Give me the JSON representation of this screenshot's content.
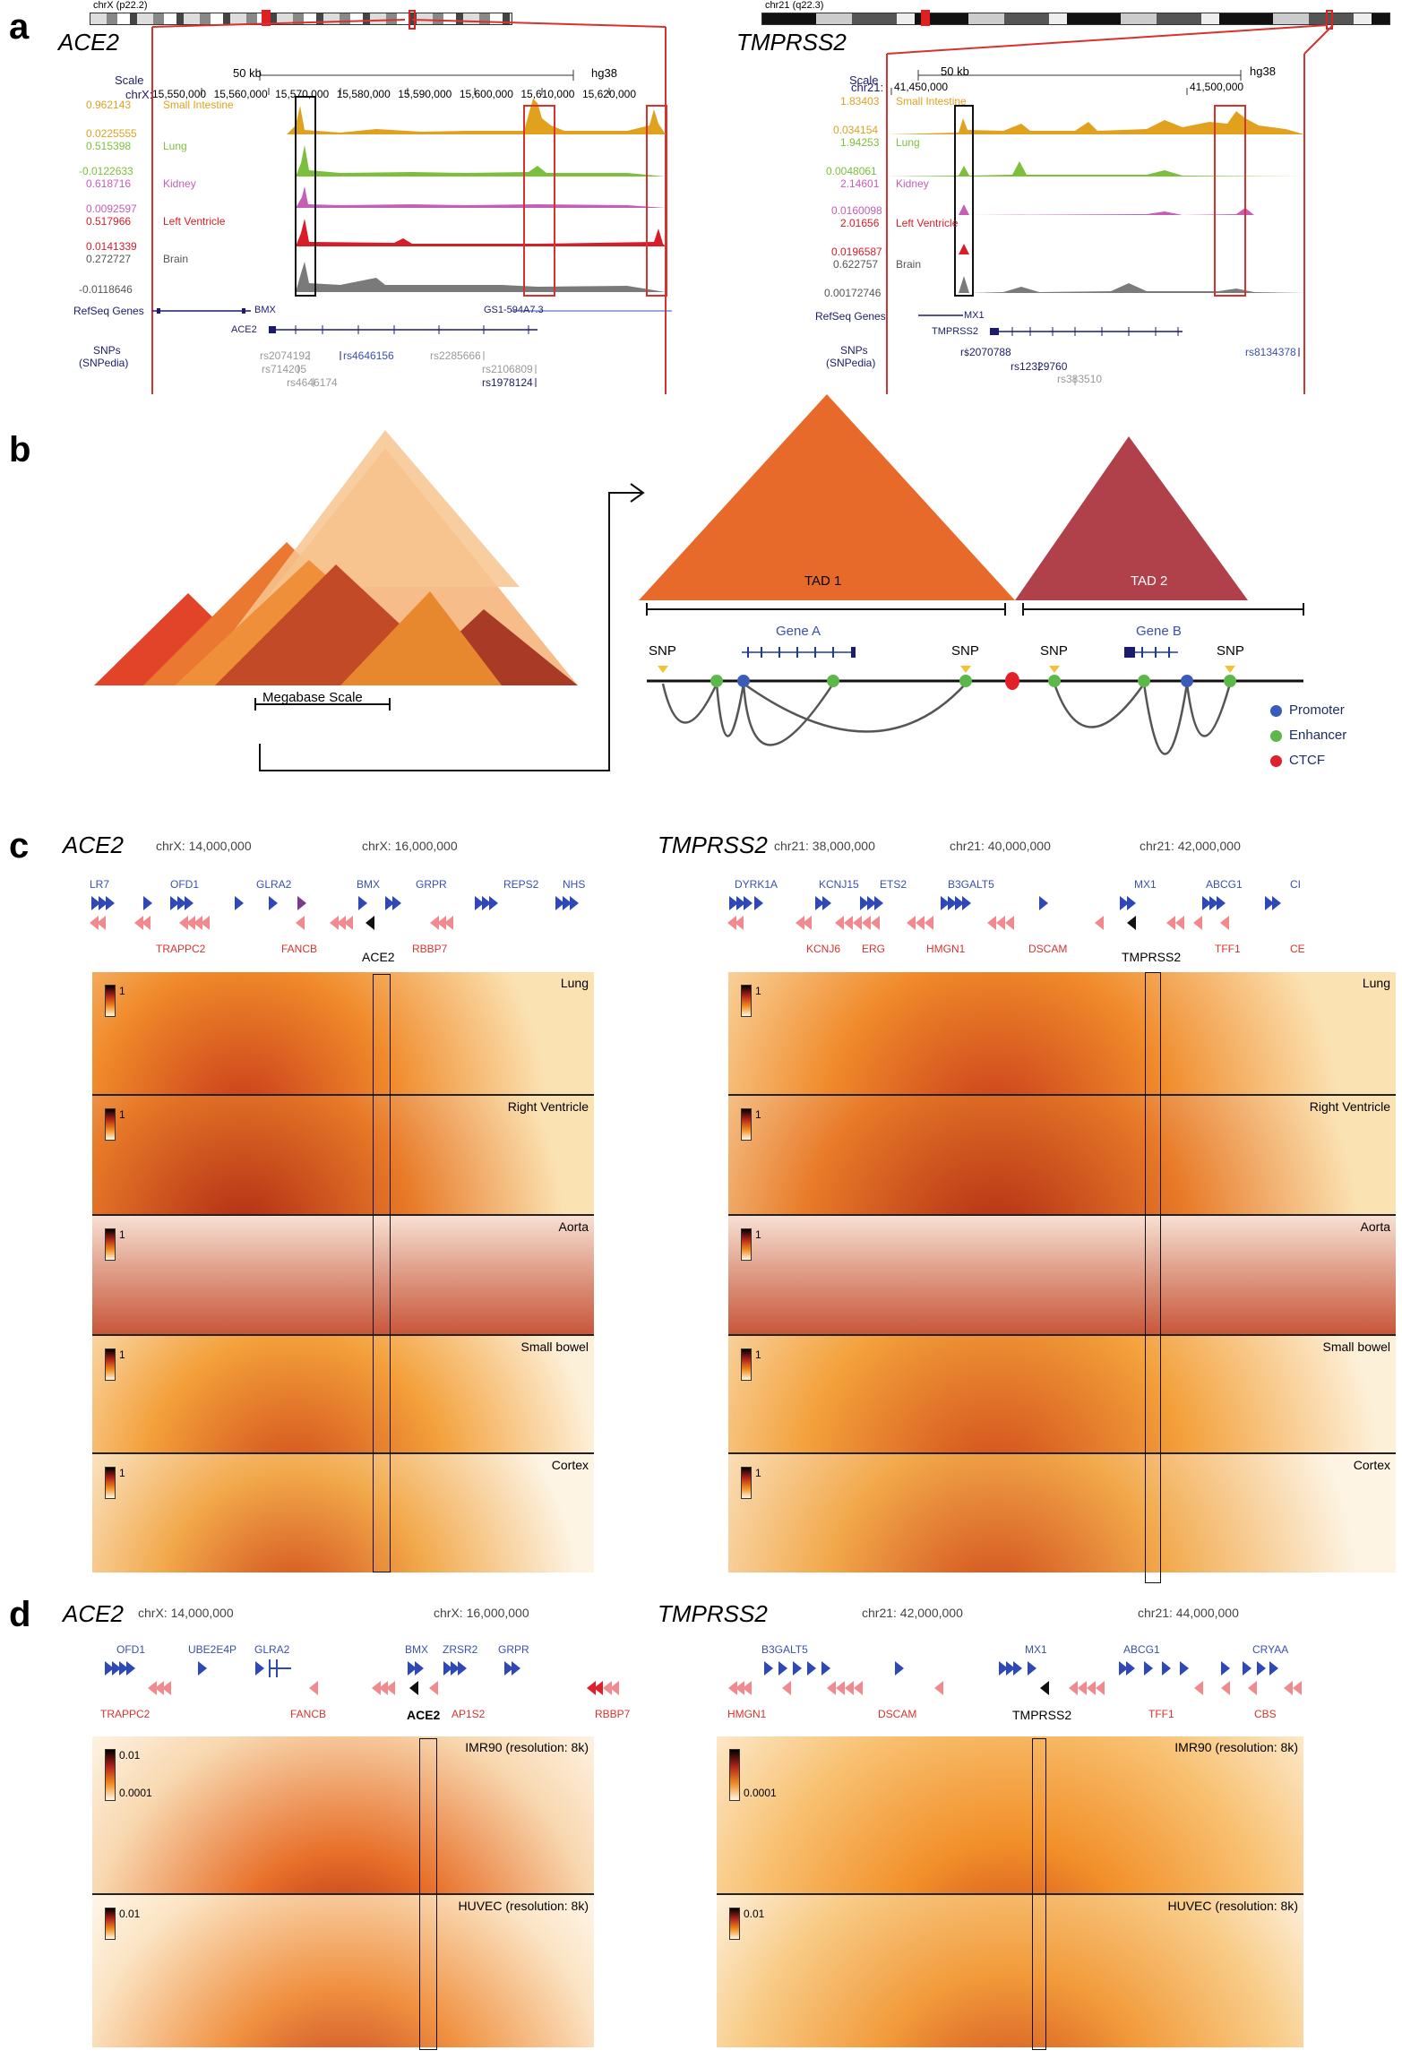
{
  "panels": {
    "a": {
      "label": "a",
      "ace2": {
        "title": "ACE2",
        "ideogram": "chrX (p22.2)",
        "scale_label": "Scale",
        "scale_value": "50 kb",
        "genome": "hg38",
        "chr_prefix": "chrX:",
        "coords": [
          "15,550,000",
          "15,560,000",
          "15,570,000",
          "15,580,000",
          "15,590,000",
          "15,600,000",
          "15,610,000",
          "15,620,000"
        ],
        "tracks": [
          {
            "name": "Small Intestine",
            "vmax": "0.962143",
            "vmin": "0.0225555",
            "color": "#e0a21e"
          },
          {
            "name": "Lung",
            "vmax": "0.515398",
            "vmin": "-0.0122633",
            "color": "#7cbf3c"
          },
          {
            "name": "Kidney",
            "vmax": "0.618716",
            "vmin": "0.0092597",
            "color": "#c65db6"
          },
          {
            "name": "Left Ventricle",
            "vmax": "0.517966",
            "vmin": "0.0141339",
            "color": "#d81c28"
          },
          {
            "name": "Brain",
            "vmax": "0.272727",
            "vmin": "-0.0118646",
            "color": "#7a7a7a"
          }
        ],
        "refseq_label": "RefSeq Genes",
        "genes": [
          "BMX",
          "GS1-594A7.3",
          "ACE2"
        ],
        "snps_label": "SNPs",
        "snps_sub": "(SNPedia)",
        "snps": [
          "rs2074192",
          "rs4646156",
          "rs2285666",
          "rs714205",
          "rs2106809",
          "rs4646174",
          "rs1978124"
        ]
      },
      "tmprss2": {
        "title": "TMPRSS2",
        "ideogram": "chr21 (q22.3)",
        "scale_label": "Scale",
        "scale_value": "50 kb",
        "genome": "hg38",
        "chr_prefix": "chr21:",
        "coords": [
          "41,450,000",
          "41,500,000"
        ],
        "tracks": [
          {
            "name": "Small Intestine",
            "vmax": "1.83403",
            "vmin": "0.034154",
            "color": "#e0a21e"
          },
          {
            "name": "Lung",
            "vmax": "1.94253",
            "vmin": "0.0048061",
            "color": "#7cbf3c"
          },
          {
            "name": "Kidney",
            "vmax": "2.14601",
            "vmin": "0.0160098",
            "color": "#c65db6"
          },
          {
            "name": "Left Ventricle",
            "vmax": "2.01656",
            "vmin": "0.0196587",
            "color": "#d81c28"
          },
          {
            "name": "Brain",
            "vmax": "0.622757",
            "vmin": "0.00172746",
            "color": "#7a7a7a"
          }
        ],
        "refseq_label": "RefSeq Genes",
        "genes": [
          "MX1",
          "TMPRSS2"
        ],
        "snps_label": "SNPs",
        "snps_sub": "(SNPedia)",
        "snps": [
          "rs2070788",
          "rs12329760",
          "rs8134378",
          "rs383510"
        ]
      }
    },
    "b": {
      "label": "b",
      "megabase_label": "Megabase Scale",
      "tad1": "TAD 1",
      "tad2": "TAD 2",
      "gene_a": "Gene A",
      "gene_b": "Gene B",
      "snp": "SNP",
      "legend": [
        {
          "label": "Promoter",
          "color": "#3a5bb8"
        },
        {
          "label": "Enhancer",
          "color": "#5cb84a"
        },
        {
          "label": "CTCF",
          "color": "#e0202a"
        }
      ]
    },
    "c": {
      "label": "c",
      "ace2": {
        "title": "ACE2",
        "coords": [
          "chrX: 14,000,000",
          "chrX: 16,000,000"
        ],
        "genes_top": [
          "LR7",
          "OFD1",
          "GLRA2",
          "BMX",
          "GRPR",
          "REPS2",
          "NHS"
        ],
        "genes_bottom": [
          "TRAPPC2",
          "FANCB",
          "RBBP7"
        ],
        "highlight": "ACE2",
        "maps": [
          "Lung",
          "Right Ventricle",
          "Aorta",
          "Small bowel",
          "Cortex"
        ],
        "cbar": "1"
      },
      "tmprss2": {
        "title": "TMPRSS2",
        "coords": [
          "chr21: 38,000,000",
          "chr21: 40,000,000",
          "chr21: 42,000,000"
        ],
        "genes_top": [
          "DYRK1A",
          "KCNJ15",
          "ETS2",
          "B3GALT5",
          "MX1",
          "ABCG1",
          "CI"
        ],
        "genes_bottom": [
          "KCNJ6",
          "ERG",
          "HMGN1",
          "DSCAM",
          "TFF1",
          "CE"
        ],
        "highlight": "TMPRSS2",
        "maps": [
          "Lung",
          "Right Ventricle",
          "Aorta",
          "Small bowel",
          "Cortex"
        ],
        "cbar": "1"
      }
    },
    "d": {
      "label": "d",
      "ace2": {
        "title": "ACE2",
        "coords": [
          "chrX: 14,000,000",
          "chrX: 16,000,000"
        ],
        "genes_top": [
          "OFD1",
          "UBE2E4P",
          "GLRA2",
          "BMX",
          "ZRSR2",
          "GRPR"
        ],
        "genes_bottom": [
          "TRAPPC2",
          "FANCB",
          "AP1S2",
          "RBBP7"
        ],
        "highlight": "ACE2",
        "maps": [
          "IMR90 (resolution: 8k)",
          "HUVEC (resolution: 8k)"
        ],
        "cbar_top": "0.01",
        "cbar_bottom": "0.0001",
        "cbar2": "0.01"
      },
      "tmprss2": {
        "title": "TMPRSS2",
        "coords": [
          "chr21: 42,000,000",
          "chr21: 44,000,000"
        ],
        "genes_top": [
          "B3GALT5",
          "MX1",
          "ABCG1",
          "CRYAA"
        ],
        "genes_bottom": [
          "HMGN1",
          "DSCAM",
          "TFF1",
          "CBS"
        ],
        "highlight": "TMPRSS2",
        "maps": [
          "IMR90 (resolution: 8k)",
          "HUVEC (resolution: 8k)"
        ],
        "cbar_bottom": "0.0001",
        "cbar2": "0.01"
      }
    }
  }
}
